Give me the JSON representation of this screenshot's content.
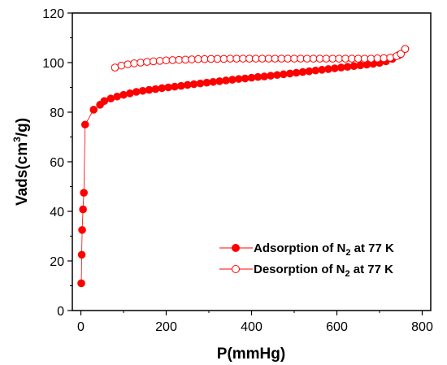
{
  "chart_data": {
    "type": "scatter",
    "xlabel": "P(mmHg)",
    "ylabel_main": "Vads(cm",
    "ylabel_sup": "3",
    "ylabel_tail": "/g)",
    "xlim": [
      -20,
      820
    ],
    "ylim": [
      0,
      120
    ],
    "xticks": [
      0,
      200,
      400,
      600,
      800
    ],
    "yticks": [
      0,
      20,
      40,
      60,
      80,
      100,
      120
    ],
    "legend_position": "bottom-right",
    "series": [
      {
        "name": "Adsorption of N2 at 77 K",
        "label_main": "Adsorption of N",
        "label_sub": "2",
        "label_tail": " at 77 K",
        "color": "#ff0000",
        "marker": "filled-circle",
        "x": [
          1,
          2,
          3,
          5,
          7,
          10,
          30,
          45,
          55,
          70,
          85,
          100,
          115,
          130,
          145,
          160,
          175,
          190,
          205,
          220,
          235,
          250,
          265,
          280,
          295,
          310,
          325,
          340,
          355,
          370,
          385,
          400,
          415,
          430,
          445,
          460,
          475,
          490,
          505,
          520,
          535,
          550,
          565,
          580,
          595,
          610,
          625,
          640,
          655,
          670,
          685,
          700,
          715,
          730,
          745,
          760
        ],
        "y": [
          11,
          22.5,
          32.5,
          40.8,
          47.5,
          75,
          81,
          83,
          84.5,
          85.5,
          86.3,
          87,
          87.6,
          88.2,
          88.6,
          89,
          89.3,
          89.7,
          90,
          90.3,
          90.6,
          91,
          91.3,
          91.6,
          91.9,
          92.2,
          92.5,
          92.8,
          93.1,
          93.4,
          93.6,
          93.9,
          94.2,
          94.4,
          94.7,
          95,
          95.3,
          95.6,
          95.9,
          96.2,
          96.5,
          96.8,
          97.1,
          97.4,
          97.7,
          98,
          98.3,
          98.6,
          98.9,
          99.2,
          99.5,
          99.9,
          100.5,
          101.5,
          103,
          105.5
        ]
      },
      {
        "name": "Desorption of N2 at 77 K",
        "label_main": "Desorption of N",
        "label_sub": "2",
        "label_tail": " at 77 K",
        "color": "#ff0000",
        "marker": "open-circle",
        "x": [
          80,
          95,
          110,
          125,
          140,
          155,
          170,
          185,
          200,
          215,
          230,
          245,
          260,
          275,
          290,
          305,
          320,
          335,
          350,
          365,
          380,
          395,
          410,
          425,
          440,
          455,
          470,
          485,
          500,
          515,
          530,
          545,
          560,
          575,
          590,
          605,
          620,
          635,
          650,
          665,
          680,
          695,
          710,
          725,
          740,
          750,
          760
        ],
        "y": [
          98,
          98.8,
          99.3,
          99.7,
          100,
          100.3,
          100.5,
          100.7,
          100.9,
          101,
          101.1,
          101.2,
          101.3,
          101.4,
          101.4,
          101.5,
          101.5,
          101.5,
          101.6,
          101.6,
          101.6,
          101.6,
          101.6,
          101.6,
          101.6,
          101.6,
          101.6,
          101.6,
          101.6,
          101.6,
          101.6,
          101.6,
          101.6,
          101.6,
          101.6,
          101.6,
          101.6,
          101.6,
          101.6,
          101.6,
          101.6,
          101.7,
          101.8,
          102,
          102.6,
          103.5,
          105.5
        ]
      }
    ]
  }
}
